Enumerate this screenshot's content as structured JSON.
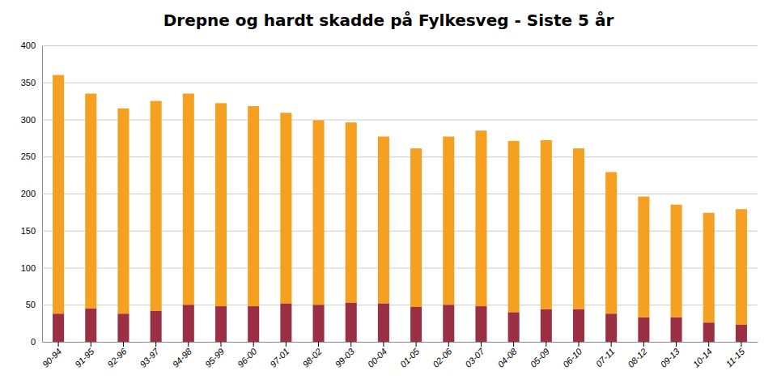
{
  "chart_data": {
    "type": "bar",
    "title": "Drepne og hardt skadde på Fylkesveg - Siste 5 år",
    "categories": [
      "90-94",
      "91-95",
      "92-96",
      "93-97",
      "94-98",
      "95-99",
      "96-00",
      "97-01",
      "98-02",
      "99-03",
      "00-04",
      "01-05",
      "02-06",
      "03-07",
      "04-08",
      "05-09",
      "06-10",
      "07-11",
      "08-12",
      "09-13",
      "10-14",
      "11-15"
    ],
    "series": [
      {
        "color": "#9B3045",
        "values": [
          38,
          45,
          38,
          42,
          50,
          48,
          48,
          52,
          50,
          53,
          52,
          47,
          50,
          48,
          40,
          44,
          44,
          38,
          33,
          33,
          26,
          23
        ]
      },
      {
        "color": "#F5A020",
        "values": [
          322,
          290,
          277,
          283,
          285,
          274,
          270,
          257,
          249,
          243,
          225,
          214,
          227,
          237,
          231,
          228,
          217,
          191,
          163,
          152,
          148,
          156
        ]
      }
    ],
    "stacked": true,
    "ylim": [
      0,
      400
    ],
    "yticks": [
      0,
      50,
      100,
      150,
      200,
      250,
      300,
      350,
      400
    ],
    "grid": true
  }
}
